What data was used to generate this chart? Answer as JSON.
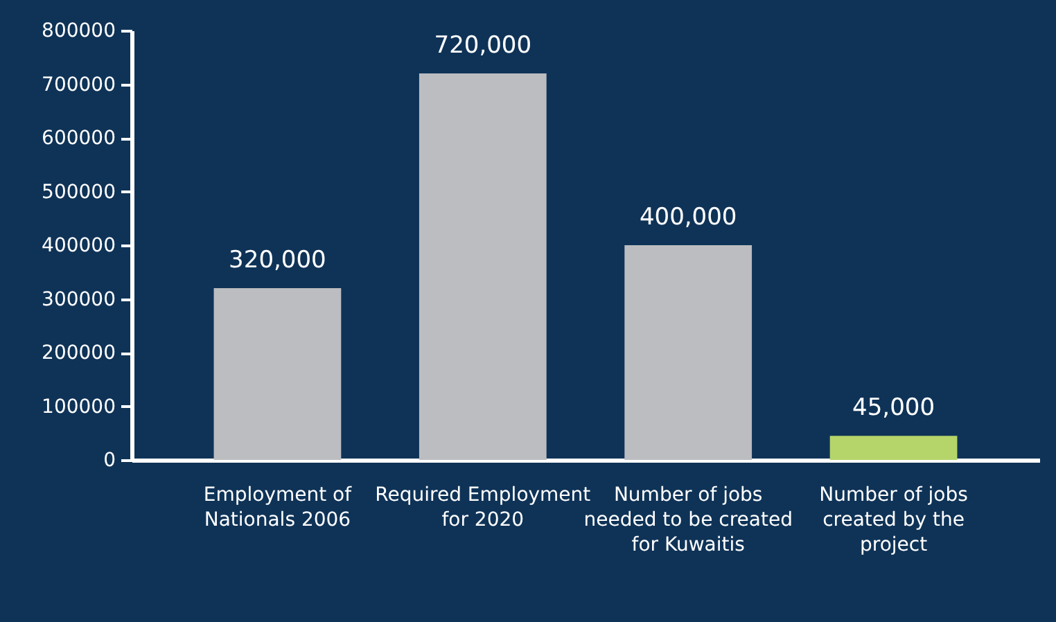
{
  "chart_data": {
    "type": "bar",
    "categories": [
      "Employment of Nationals 2006",
      "Required Employment for 2020",
      "Number of jobs needed to be created for Kuwaitis",
      "Number of jobs created by the project"
    ],
    "values": [
      320000,
      720000,
      400000,
      45000
    ],
    "value_labels": [
      "320,000",
      "720,000",
      "400,000",
      "45,000"
    ],
    "colors": [
      "#bcbdc1",
      "#bcbdc1",
      "#bcbdc1",
      "#b5d56a"
    ],
    "ylim": [
      0,
      800000
    ],
    "yticks": [
      0,
      100000,
      200000,
      300000,
      400000,
      500000,
      600000,
      700000,
      800000
    ],
    "grid": false
  }
}
